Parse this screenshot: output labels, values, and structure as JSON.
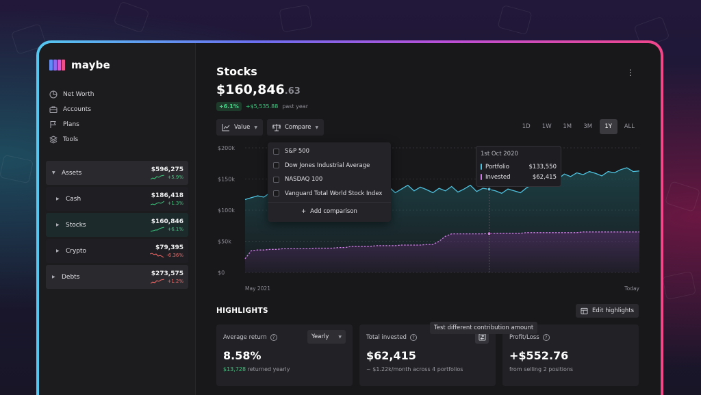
{
  "brand": {
    "name": "maybe"
  },
  "nav": [
    {
      "label": "Net Worth",
      "icon": "pie-chart-icon"
    },
    {
      "label": "Accounts",
      "icon": "briefcase-icon"
    },
    {
      "label": "Plans",
      "icon": "flag-icon"
    },
    {
      "label": "Tools",
      "icon": "layers-icon"
    }
  ],
  "accounts": [
    {
      "label": "Assets",
      "value": "$596,275",
      "change": "+5.9%",
      "trend": "up",
      "kind": "group"
    },
    {
      "label": "Cash",
      "value": "$186,418",
      "change": "+1.3%",
      "trend": "up",
      "kind": "child"
    },
    {
      "label": "Stocks",
      "value": "$160,846",
      "change": "+6.1%",
      "trend": "up",
      "kind": "child-active"
    },
    {
      "label": "Crypto",
      "value": "$79,395",
      "change": "-6.36%",
      "trend": "down",
      "kind": "child"
    },
    {
      "label": "Debts",
      "value": "$273,575",
      "change": "+1.2%",
      "trend": "down",
      "kind": "group"
    }
  ],
  "page": {
    "title": "Stocks",
    "value_main": "$160,846",
    "value_cents": ".63",
    "change_pct": "+6.1%",
    "change_amount": "+$5,535.88",
    "change_period": "past year"
  },
  "controls": {
    "value_label": "Value",
    "compare_label": "Compare",
    "periods": [
      "1D",
      "1W",
      "1M",
      "3M",
      "1Y",
      "ALL"
    ],
    "active_period": "1Y"
  },
  "compare_menu": {
    "options": [
      "S&P 500",
      "Dow Jones Industrial Average",
      "NASDAQ 100",
      "Vanguard Total World Stock Index"
    ],
    "add_label": "Add comparison"
  },
  "tooltip": {
    "date": "1st Oct 2020",
    "rows": [
      {
        "label": "Portfolio",
        "value": "$133,550",
        "color": "#4fc3e0"
      },
      {
        "label": "Invested",
        "value": "$62,415",
        "color": "#d27ee8"
      }
    ]
  },
  "chart_data": {
    "type": "line",
    "y_ticks": [
      "$200k",
      "$150k",
      "$100k",
      "$50k",
      "$0"
    ],
    "ylim": [
      0,
      200000
    ],
    "x_labels": [
      "May 2021",
      "Today"
    ],
    "grid": true,
    "series": [
      {
        "name": "Portfolio",
        "color": "#4fc3e0",
        "values": [
          117000,
          120000,
          123000,
          121000,
          128000,
          124000,
          126000,
          123000,
          95000,
          92000,
          88000,
          93000,
          98000,
          104000,
          110000,
          117000,
          124000,
          131000,
          127000,
          133000,
          129000,
          135000,
          132000,
          137000,
          128000,
          134000,
          140000,
          131000,
          137000,
          133000,
          128000,
          135000,
          131000,
          138000,
          129000,
          134000,
          140000,
          130000,
          135000,
          133550,
          131000,
          127000,
          134000,
          131000,
          128000,
          136000,
          142000,
          147000,
          145000,
          152000,
          150000,
          158000,
          154000,
          160000,
          157000,
          162000,
          159000,
          155000,
          162000,
          160000,
          165000,
          168000,
          162000,
          163000
        ]
      },
      {
        "name": "Invested",
        "color": "#d27ee8",
        "values": [
          22000,
          35000,
          36000,
          36000,
          37000,
          37000,
          38000,
          38000,
          38000,
          38000,
          38000,
          39000,
          39000,
          39000,
          39000,
          40000,
          40000,
          42000,
          42000,
          42000,
          42000,
          43000,
          43000,
          43000,
          43000,
          44000,
          44000,
          44000,
          44000,
          45000,
          45000,
          50000,
          58000,
          62000,
          62000,
          62000,
          62000,
          62000,
          62000,
          62415,
          63000,
          63000,
          63000,
          63000,
          63000,
          64000,
          64000,
          64000,
          64000,
          64000,
          64000,
          64000,
          64000,
          64000,
          65000,
          65000,
          65000,
          65000,
          65000,
          65000,
          65000,
          65000,
          65000,
          65000
        ]
      }
    ],
    "tooltip_index": 39
  },
  "highlights": {
    "title": "HIGHLIGHTS",
    "edit_label": "Edit highlights",
    "hint": "Test different contribution amount",
    "cards": [
      {
        "label": "Average return",
        "value": "8.58%",
        "sub_strong": "$13,728",
        "sub_rest": " returned yearly",
        "control": "Yearly"
      },
      {
        "label": "Total invested",
        "value": "$62,415",
        "sub_strong": "",
        "sub_rest": "~ $1.22k/month across 4 portfolios",
        "control": ""
      },
      {
        "label": "Profit/Loss",
        "value": "+$552.76",
        "sub_strong": "",
        "sub_rest": "from selling 2 positions",
        "control": ""
      }
    ]
  }
}
